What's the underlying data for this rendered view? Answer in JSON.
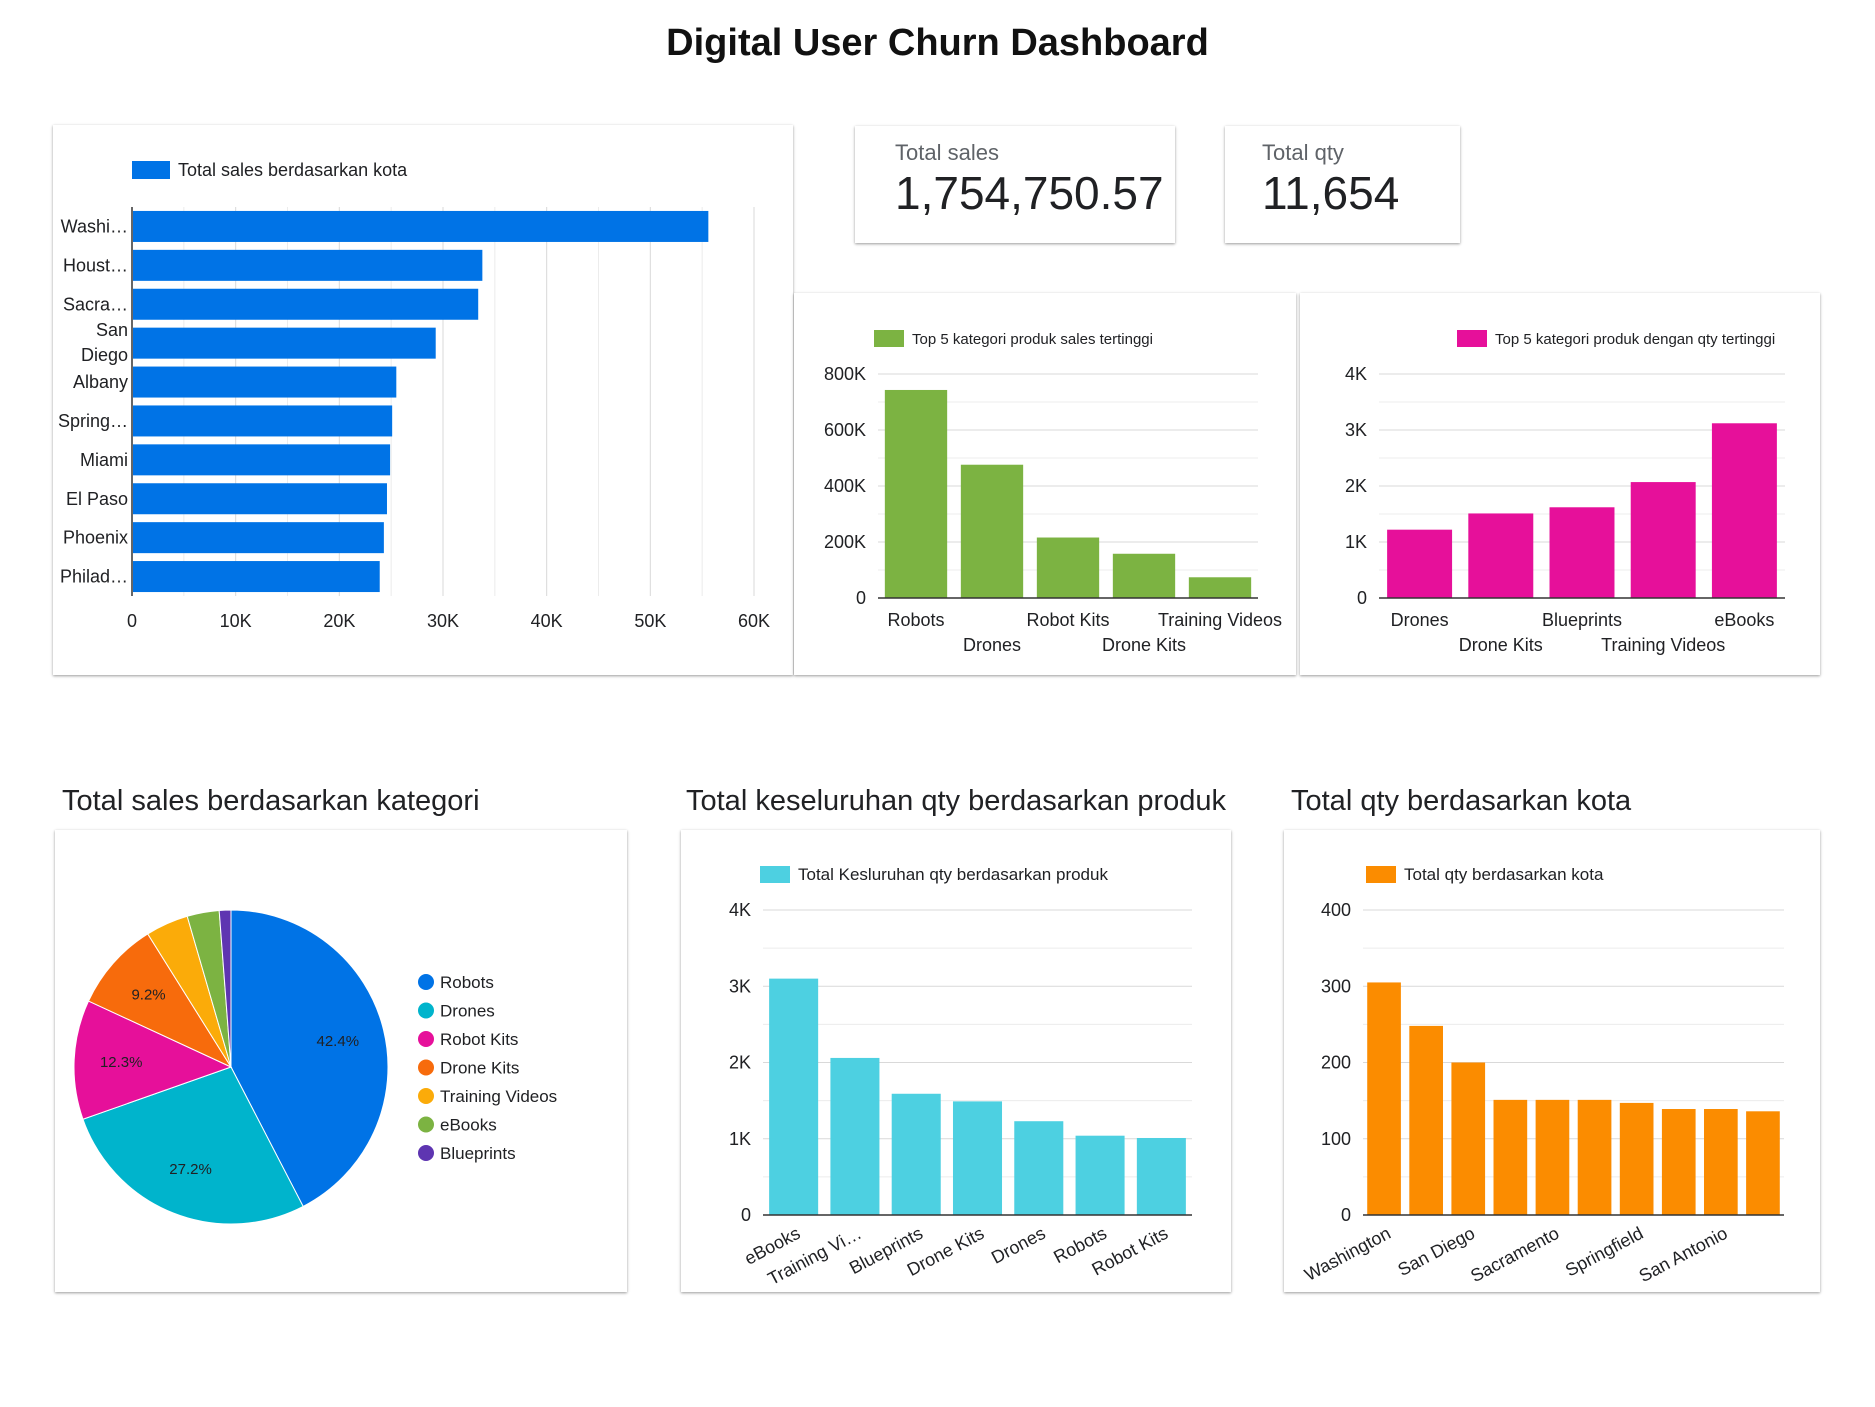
{
  "page": {
    "title": "Digital User Churn Dashboard"
  },
  "kpis": {
    "total_sales": {
      "label": "Total sales",
      "value": "1,754,750.57"
    },
    "total_qty": {
      "label": "Total qty",
      "value": "11,654"
    }
  },
  "headings": {
    "pie": "Total sales berdasarkan kategori",
    "qty_product": "Total keseluruhan qty berdasarkan produk",
    "qty_city": "Total qty berdasarkan kota"
  },
  "colors": {
    "blue": "#0073e6",
    "green": "#7cb342",
    "magenta": "#e6109a",
    "cyan": "#4dd0e1",
    "orange": "#fb8c00",
    "grid": "#d9d9d9"
  },
  "chart_data": [
    {
      "id": "sales_by_city",
      "type": "bar",
      "orientation": "horizontal",
      "legend": "Total sales berdasarkan kota",
      "categories": [
        "Washi…",
        "Houst…",
        "Sacra…",
        "San Diego",
        "Albany",
        "Spring…",
        "Miami",
        "El Paso",
        "Phoenix",
        "Philad…"
      ],
      "values": [
        55500,
        33700,
        33300,
        29200,
        25400,
        25000,
        24800,
        24500,
        24200,
        23800
      ],
      "xlim": [
        0,
        60000
      ],
      "xticks": [
        "0",
        "10K",
        "20K",
        "30K",
        "40K",
        "50K",
        "60K"
      ],
      "grid": true,
      "legend_position": "top-left"
    },
    {
      "id": "top5_sales_category",
      "type": "bar",
      "legend": "Top 5 kategori produk sales tertinggi",
      "categories": [
        "Robots",
        "Drones",
        "Robot Kits",
        "Drone Kits",
        "Training Videos"
      ],
      "values": [
        743000,
        476000,
        216000,
        158000,
        74000
      ],
      "ylim": [
        0,
        800000
      ],
      "yticks": [
        "0",
        "200K",
        "400K",
        "600K",
        "800K"
      ],
      "grid": true,
      "legend_position": "top-left"
    },
    {
      "id": "top5_qty_category",
      "type": "bar",
      "legend": "Top 5 kategori produk dengan qty tertinggi",
      "categories": [
        "Drones",
        "Drone Kits",
        "Blueprints",
        "Training Videos",
        "eBooks"
      ],
      "values": [
        1220,
        1510,
        1620,
        2070,
        3120
      ],
      "ylim": [
        0,
        4000
      ],
      "yticks": [
        "0",
        "1K",
        "2K",
        "3K",
        "4K"
      ],
      "grid": true,
      "legend_position": "top-right"
    },
    {
      "id": "sales_by_category",
      "type": "pie",
      "labels": [
        "Robots",
        "Drones",
        "Robot Kits",
        "Drone Kits",
        "Training Videos",
        "eBooks",
        "Blueprints"
      ],
      "values": [
        42.4,
        27.2,
        12.3,
        9.2,
        4.4,
        3.3,
        1.2
      ],
      "value_labels": [
        "42.4%",
        "27.2%",
        "12.3%",
        "9.2%",
        "",
        "",
        ""
      ],
      "colors": [
        "#0073e6",
        "#00b4cc",
        "#e6109a",
        "#f76b0c",
        "#fbab09",
        "#7cb342",
        "#5e35b1"
      ],
      "legend_position": "right"
    },
    {
      "id": "qty_by_product",
      "type": "bar",
      "legend": "Total Kesluruhan qty berdasarkan produk",
      "categories": [
        "eBooks",
        "Training Vi…",
        "Blueprints",
        "Drone Kits",
        "Drones",
        "Robots",
        "Robot Kits"
      ],
      "values": [
        3100,
        2060,
        1590,
        1490,
        1230,
        1040,
        1010
      ],
      "ylim": [
        0,
        4000
      ],
      "yticks": [
        "0",
        "1K",
        "2K",
        "3K",
        "4K"
      ],
      "grid": true,
      "legend_position": "top-left"
    },
    {
      "id": "qty_by_city",
      "type": "bar",
      "legend": "Total qty berdasarkan kota",
      "categories": [
        "Washington",
        "",
        "San Diego",
        "",
        "Sacramento",
        "",
        "Springfield",
        "",
        "San Antonio",
        ""
      ],
      "values": [
        305,
        248,
        200,
        151,
        151,
        151,
        147,
        139,
        139,
        136
      ],
      "ylim": [
        0,
        400
      ],
      "yticks": [
        "0",
        "100",
        "200",
        "300",
        "400"
      ],
      "grid": true,
      "legend_position": "top-left"
    }
  ]
}
